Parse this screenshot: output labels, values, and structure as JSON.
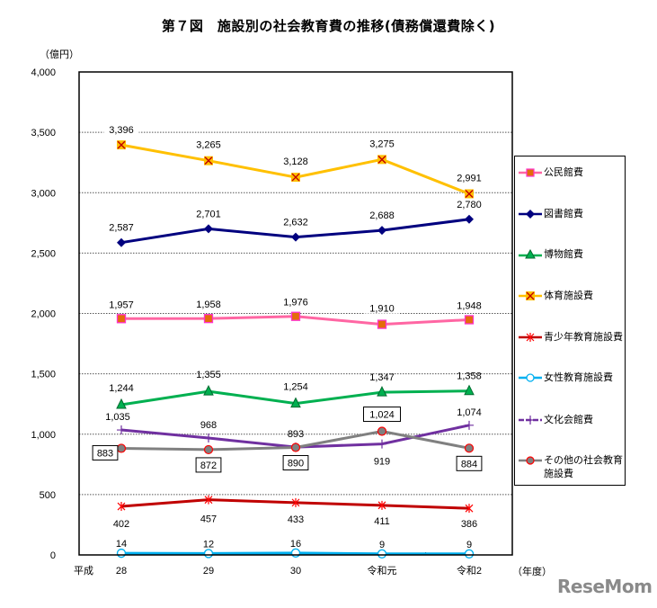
{
  "title": "第７図　施設別の社会教育費の推移(債務償還費除く)",
  "unit_label": "（億円）",
  "x_unit_label": "（年度）",
  "era_label": "平成",
  "watermark": "ReseMom",
  "chart_data": {
    "type": "line",
    "title": "第７図　施設別の社会教育費の推移(債務償還費除く)",
    "xlabel": "（年度）",
    "ylabel": "（億円）",
    "categories": [
      "28",
      "29",
      "30",
      "令和元",
      "令和2"
    ],
    "ylim": [
      0,
      4000
    ],
    "yticks": [
      0,
      500,
      1000,
      1500,
      2000,
      2500,
      3000,
      3500,
      4000
    ],
    "ytick_labels": [
      "0",
      "500",
      "1,000",
      "1,500",
      "2,000",
      "2,500",
      "3,000",
      "3,500",
      "4,000"
    ],
    "grid": true,
    "legend_position": "right",
    "series": [
      {
        "name": "公民館費",
        "values": [
          1957,
          1958,
          1976,
          1910,
          1948
        ],
        "labels": [
          "1,957",
          "1,958",
          "1,976",
          "1,910",
          "1,948"
        ],
        "color": "#ff66a3",
        "marker": "square",
        "marker_fill": "#e36c0a",
        "marker_stroke": "#ff33cc"
      },
      {
        "name": "図書館費",
        "values": [
          2587,
          2701,
          2632,
          2688,
          2780
        ],
        "labels": [
          "2,587",
          "2,701",
          "2,632",
          "2,688",
          "2,780"
        ],
        "color": "#00007f",
        "marker": "diamond",
        "marker_fill": "#00007f",
        "marker_stroke": "#00007f"
      },
      {
        "name": "博物館費",
        "values": [
          1244,
          1355,
          1254,
          1347,
          1358
        ],
        "labels": [
          "1,244",
          "1,355",
          "1,254",
          "1,347",
          "1,358"
        ],
        "color": "#00b050",
        "marker": "triangle",
        "marker_fill": "#00b050",
        "marker_stroke": "#006b2f"
      },
      {
        "name": "体育施設費",
        "values": [
          3396,
          3265,
          3128,
          3275,
          2991
        ],
        "labels": [
          "3,396",
          "3,265",
          "3,128",
          "3,275",
          "2,991"
        ],
        "color": "#ffc000",
        "marker": "xsquare",
        "marker_fill": "#ffc000",
        "marker_stroke": "#c00000"
      },
      {
        "name": "青少年教育施設費",
        "values": [
          402,
          457,
          433,
          411,
          386
        ],
        "labels": [
          "402",
          "457",
          "433",
          "411",
          "386"
        ],
        "color": "#c00000",
        "marker": "star",
        "marker_fill": "none",
        "marker_stroke": "#ff0000"
      },
      {
        "name": "女性教育施設費",
        "values": [
          14,
          12,
          16,
          9,
          9
        ],
        "labels": [
          "14",
          "12",
          "16",
          "9",
          "9"
        ],
        "color": "#00b0f0",
        "marker": "circle-open",
        "marker_fill": "#ffffff",
        "marker_stroke": "#00b0f0"
      },
      {
        "name": "文化会館費",
        "values": [
          1035,
          968,
          893,
          919,
          1074
        ],
        "labels": [
          "1,035",
          "968",
          "893",
          "919",
          "1,074"
        ],
        "color": "#7030a0",
        "marker": "plus",
        "marker_fill": "none",
        "marker_stroke": "#7030a0"
      },
      {
        "name": "その他の社会教育施設費",
        "values": [
          883,
          872,
          890,
          1024,
          884
        ],
        "labels": [
          "883",
          "872",
          "890",
          "1,024",
          "884"
        ],
        "color": "#808080",
        "marker": "circle",
        "marker_fill": "#808080",
        "marker_stroke": "#ff0000",
        "boxed_labels": true
      }
    ]
  },
  "legend": {
    "items": [
      {
        "label": "公民館費"
      },
      {
        "label": "図書館費"
      },
      {
        "label": "博物館費"
      },
      {
        "label": "体育施設費"
      },
      {
        "label": "青少年教育施設費"
      },
      {
        "label": "女性教育施設費"
      },
      {
        "label": "文化会館費"
      },
      {
        "label": "その他の社会教育施設費"
      }
    ]
  }
}
